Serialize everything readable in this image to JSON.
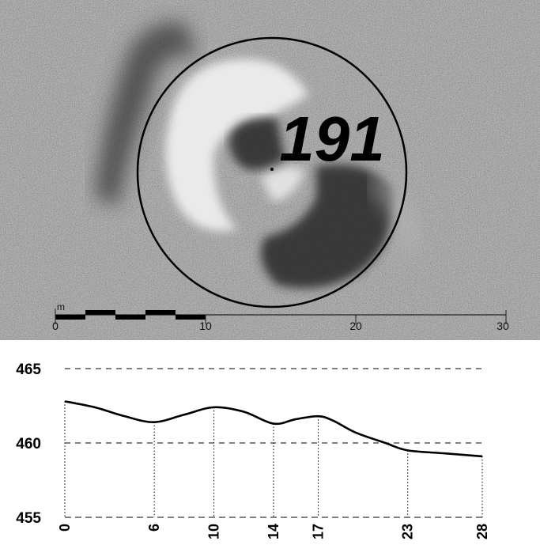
{
  "map": {
    "feature_label": "191",
    "scale_bar": {
      "unit": "m",
      "ticks": [
        "0",
        "10",
        "20",
        "30"
      ]
    }
  },
  "chart_data": {
    "type": "line",
    "title": "",
    "xlabel": "",
    "ylabel": "",
    "xlim": [
      0,
      28
    ],
    "ylim": [
      455,
      465
    ],
    "yticks": [
      455,
      460,
      465
    ],
    "xticks": [
      0,
      6,
      10,
      14,
      17,
      23,
      28
    ],
    "grid": "dashed horizontal at y ticks; dotted vertical drops at x ticks",
    "series": [
      {
        "values": [
          {
            "x": 0,
            "y": 462.8
          },
          {
            "x": 2,
            "y": 462.4
          },
          {
            "x": 4,
            "y": 461.8
          },
          {
            "x": 6,
            "y": 461.4
          },
          {
            "x": 8,
            "y": 461.9
          },
          {
            "x": 10,
            "y": 462.4
          },
          {
            "x": 12,
            "y": 462.1
          },
          {
            "x": 14,
            "y": 461.3
          },
          {
            "x": 15.5,
            "y": 461.6
          },
          {
            "x": 17,
            "y": 461.8
          },
          {
            "x": 18,
            "y": 461.5
          },
          {
            "x": 19.5,
            "y": 460.7
          },
          {
            "x": 21.5,
            "y": 460.0
          },
          {
            "x": 23,
            "y": 459.5
          },
          {
            "x": 25.5,
            "y": 459.3
          },
          {
            "x": 28,
            "y": 459.1
          }
        ]
      }
    ]
  }
}
